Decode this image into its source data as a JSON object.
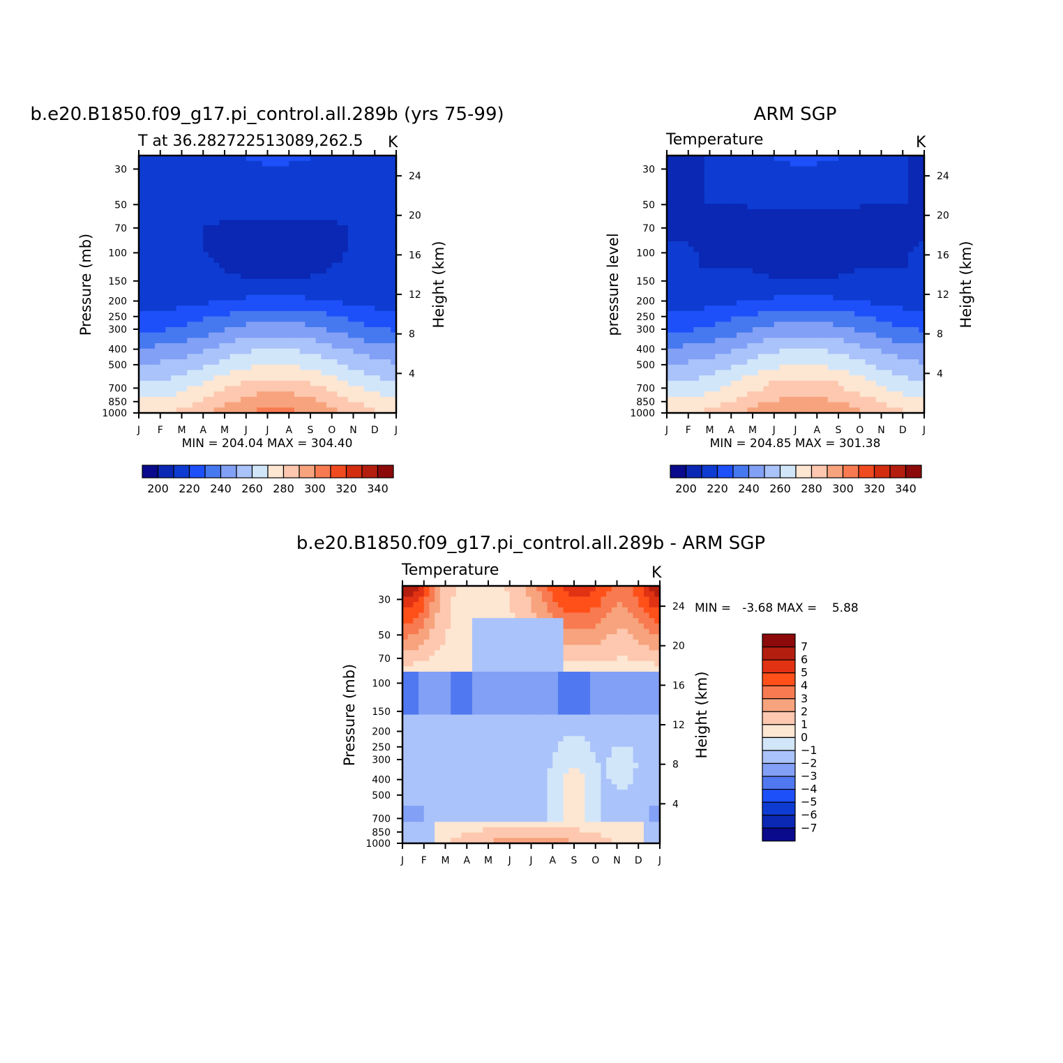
{
  "chart_data": [
    {
      "type": "contour",
      "title": "b.e20.B1850.f09_g17.pi_control.all.289b (yrs 75-99)",
      "subtitle": "T at 36.282722513089,262.5",
      "units": "K",
      "ylabel_left": "Pressure (mb)",
      "ylabel_right": "Height (km)",
      "x_ticks": [
        "J",
        "F",
        "M",
        "A",
        "M",
        "J",
        "J",
        "A",
        "S",
        "O",
        "N",
        "D",
        "J"
      ],
      "p_ticks": [
        30,
        50,
        70,
        100,
        150,
        200,
        250,
        300,
        400,
        500,
        700,
        850,
        1000
      ],
      "h_ticks": [
        24,
        20,
        16,
        12,
        8,
        4
      ],
      "min_max": "MIN = 204.04 MAX = 304.40",
      "min": 204.04,
      "max": 304.4,
      "colorbar_labels": [
        200,
        220,
        240,
        260,
        280,
        300,
        320,
        340
      ],
      "profile": {
        "level_keys": [
          "1000",
          "850",
          "700",
          "500",
          "400",
          "300",
          "250",
          "200",
          "150",
          "100",
          "70",
          "50",
          "30"
        ],
        "temps_by_month": {
          "Jan": [
            279,
            272,
            264,
            251,
            242,
            229,
            223,
            215,
            213,
            213,
            212,
            211,
            211
          ],
          "Jul": [
            303,
            296,
            287,
            270,
            260,
            245,
            236,
            223,
            210,
            206,
            207,
            214,
            219
          ]
        }
      }
    },
    {
      "type": "contour",
      "title": "ARM SGP",
      "subtitle": "Temperature",
      "units": "K",
      "ylabel_left": "pressure level",
      "ylabel_right": "Height (km)",
      "x_ticks": [
        "J",
        "F",
        "M",
        "A",
        "M",
        "J",
        "J",
        "A",
        "S",
        "O",
        "N",
        "D",
        "J"
      ],
      "p_ticks": [
        30,
        50,
        70,
        100,
        150,
        200,
        250,
        300,
        400,
        500,
        700,
        850,
        1000
      ],
      "h_ticks": [
        24,
        20,
        16,
        12,
        8,
        4
      ],
      "min_max": "MIN = 204.85 MAX = 301.38",
      "min": 204.85,
      "max": 301.38,
      "colorbar_labels": [
        200,
        220,
        240,
        260,
        280,
        300,
        320,
        340
      ]
    },
    {
      "type": "contour",
      "title": "b.e20.B1850.f09_g17.pi_control.all.289b - ARM SGP",
      "subtitle": "Temperature",
      "units": "K",
      "ylabel_left": "Pressure (mb)",
      "ylabel_right": "Height (km)",
      "x_ticks": [
        "J",
        "F",
        "M",
        "A",
        "M",
        "J",
        "J",
        "A",
        "S",
        "O",
        "N",
        "D",
        "J"
      ],
      "p_ticks": [
        30,
        50,
        70,
        100,
        150,
        200,
        250,
        300,
        400,
        500,
        700,
        850,
        1000
      ],
      "h_ticks": [
        24,
        20,
        16,
        12,
        8,
        4
      ],
      "min_max": "MIN =   -3.68 MAX =    5.88",
      "min": -3.68,
      "max": 5.88,
      "colorbar_labels": [
        7,
        6,
        5,
        4,
        3,
        2,
        1,
        0,
        -1,
        -2,
        -3,
        -4,
        -5,
        -6,
        -7
      ]
    }
  ],
  "colors": {
    "temp_scale": [
      "#0a0a8c",
      "#0a28b4",
      "#0e3cd2",
      "#1e50fa",
      "#4678f0",
      "#82a0f5",
      "#aac3fa",
      "#d2e6fa",
      "#fde6d2",
      "#fdc8af",
      "#f7a37d",
      "#f87a50",
      "#f04b20",
      "#d22d0f",
      "#b41e0f",
      "#8c0a0a"
    ],
    "diff_scale": [
      "#8c0a0a",
      "#b41e0f",
      "#e13214",
      "#ff5019",
      "#f87a50",
      "#f7a37d",
      "#fdc8af",
      "#fde6d2",
      "#d2e6fa",
      "#aac3fa",
      "#82a0f5",
      "#5078f0",
      "#1e50fa",
      "#0e3cd2",
      "#0a28b4",
      "#0a0a8c"
    ]
  }
}
